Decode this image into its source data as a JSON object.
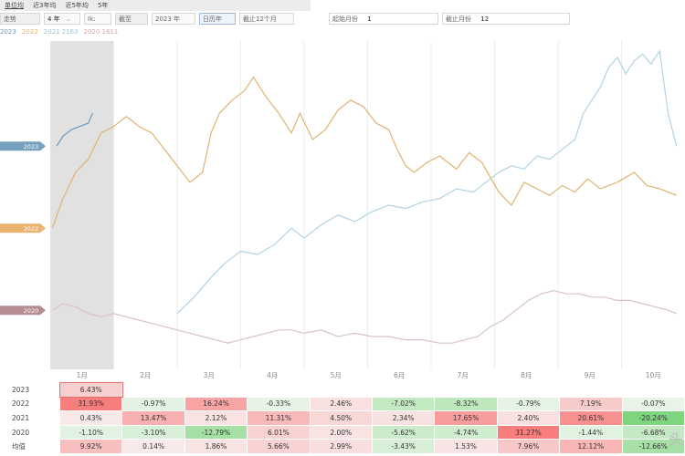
{
  "tabs": [
    "单位均",
    "近3年均",
    "近5年均",
    "5年"
  ],
  "controls": {
    "type": "走势",
    "period": "4 年",
    "unit": "Ik:",
    "mode": "截至",
    "year": "2023 年",
    "view": "日历年",
    "range": "截止12个月",
    "start_label": "起始月份",
    "start_value": "1",
    "end_label": "截止月份",
    "end_value": "12",
    "arrow": "⌄"
  },
  "legend": [
    {
      "label": "2023",
      "color": "#6e9bbd"
    },
    {
      "label": "2022",
      "color": "#f0b35a"
    },
    {
      "label": "2021 2163",
      "color": "#9fc4da"
    },
    {
      "label": "2020 1611",
      "color": "#e2a2a8"
    }
  ],
  "colors": {
    "y2023": "#6e9bbd",
    "y2022": "#e0b272",
    "y2021": "#b3d2e3",
    "y2020": "#d8c2c6",
    "shade": "#d9d9d9"
  },
  "chart_data": {
    "type": "line",
    "title": "",
    "xlabel": "",
    "ylabel": "",
    "categories": [
      "1月",
      "2月",
      "3月",
      "4月",
      "5月",
      "6月",
      "7月",
      "8月",
      "9月",
      "10月"
    ],
    "highlight_month": "1月",
    "ylim": [
      0,
      100
    ],
    "end_tags": [
      {
        "label": "2023",
        "y": 68
      },
      {
        "label": "2022",
        "y": 43
      },
      {
        "label": "2020",
        "y": 18
      }
    ],
    "series": [
      {
        "name": "2023",
        "points": [
          [
            0.15,
            68
          ],
          [
            0.3,
            71
          ],
          [
            0.5,
            73
          ],
          [
            0.7,
            74
          ],
          [
            0.9,
            75
          ],
          [
            1.0,
            78
          ]
        ]
      },
      {
        "name": "2022",
        "points": [
          [
            0.05,
            43
          ],
          [
            0.3,
            52
          ],
          [
            0.6,
            60
          ],
          [
            0.9,
            64
          ],
          [
            1.2,
            72
          ],
          [
            1.5,
            74
          ],
          [
            1.8,
            77
          ],
          [
            2.1,
            74
          ],
          [
            2.4,
            72
          ],
          [
            2.7,
            67
          ],
          [
            3.0,
            62
          ],
          [
            3.3,
            57
          ],
          [
            3.6,
            60
          ],
          [
            3.8,
            72
          ],
          [
            4.0,
            78
          ],
          [
            4.3,
            82
          ],
          [
            4.6,
            85
          ],
          [
            4.8,
            89
          ],
          [
            5.1,
            83
          ],
          [
            5.4,
            78
          ],
          [
            5.7,
            72
          ],
          [
            5.9,
            78
          ],
          [
            6.2,
            70
          ],
          [
            6.5,
            73
          ],
          [
            6.8,
            79
          ],
          [
            7.1,
            82
          ],
          [
            7.4,
            80
          ],
          [
            7.7,
            75
          ],
          [
            8.0,
            73
          ],
          [
            8.2,
            67
          ],
          [
            8.4,
            62
          ],
          [
            8.6,
            60
          ],
          [
            8.9,
            63
          ],
          [
            9.2,
            65
          ],
          [
            9.6,
            61
          ],
          [
            9.9,
            66
          ],
          [
            10.2,
            63
          ],
          [
            10.6,
            54
          ],
          [
            10.9,
            50
          ],
          [
            11.2,
            57
          ],
          [
            11.5,
            55
          ],
          [
            11.8,
            53
          ],
          [
            12.1,
            56
          ],
          [
            12.4,
            54
          ],
          [
            12.7,
            58
          ],
          [
            13.0,
            55
          ],
          [
            13.4,
            57
          ],
          [
            13.8,
            60
          ],
          [
            14.1,
            56
          ],
          [
            14.4,
            55
          ],
          [
            14.8,
            53
          ]
        ]
      },
      {
        "name": "2021",
        "points": [
          [
            3.0,
            17
          ],
          [
            3.4,
            22
          ],
          [
            3.8,
            28
          ],
          [
            4.1,
            32
          ],
          [
            4.5,
            36
          ],
          [
            4.9,
            35
          ],
          [
            5.3,
            38
          ],
          [
            5.7,
            43
          ],
          [
            6.0,
            40
          ],
          [
            6.4,
            44
          ],
          [
            6.8,
            47
          ],
          [
            7.2,
            45
          ],
          [
            7.6,
            48
          ],
          [
            8.0,
            50
          ],
          [
            8.4,
            49
          ],
          [
            8.8,
            51
          ],
          [
            9.2,
            52
          ],
          [
            9.6,
            55
          ],
          [
            10.0,
            54
          ],
          [
            10.3,
            57
          ],
          [
            10.6,
            60
          ],
          [
            10.9,
            62
          ],
          [
            11.2,
            61
          ],
          [
            11.5,
            65
          ],
          [
            11.8,
            64
          ],
          [
            12.1,
            67
          ],
          [
            12.4,
            70
          ],
          [
            12.6,
            78
          ],
          [
            12.8,
            82
          ],
          [
            13.0,
            86
          ],
          [
            13.2,
            92
          ],
          [
            13.4,
            95
          ],
          [
            13.6,
            90
          ],
          [
            13.8,
            94
          ],
          [
            14.0,
            96
          ],
          [
            14.2,
            93
          ],
          [
            14.4,
            97
          ],
          [
            14.6,
            78
          ],
          [
            14.8,
            68
          ]
        ]
      },
      {
        "name": "2020",
        "points": [
          [
            0.05,
            18
          ],
          [
            0.3,
            20
          ],
          [
            0.6,
            19
          ],
          [
            0.9,
            17
          ],
          [
            1.2,
            16
          ],
          [
            1.5,
            17
          ],
          [
            1.8,
            16
          ],
          [
            2.1,
            15
          ],
          [
            2.4,
            14
          ],
          [
            2.7,
            13
          ],
          [
            3.0,
            12
          ],
          [
            3.3,
            11
          ],
          [
            3.6,
            10
          ],
          [
            3.9,
            9
          ],
          [
            4.2,
            8
          ],
          [
            4.5,
            9
          ],
          [
            4.8,
            10
          ],
          [
            5.1,
            11
          ],
          [
            5.4,
            12
          ],
          [
            5.7,
            12
          ],
          [
            6.0,
            11
          ],
          [
            6.4,
            12
          ],
          [
            6.8,
            10
          ],
          [
            7.2,
            11
          ],
          [
            7.6,
            10
          ],
          [
            8.0,
            10
          ],
          [
            8.4,
            9
          ],
          [
            8.8,
            9
          ],
          [
            9.2,
            8
          ],
          [
            9.5,
            8
          ],
          [
            9.8,
            9
          ],
          [
            10.1,
            10
          ],
          [
            10.4,
            13
          ],
          [
            10.7,
            15
          ],
          [
            11.0,
            18
          ],
          [
            11.3,
            21
          ],
          [
            11.6,
            23
          ],
          [
            11.9,
            24
          ],
          [
            12.2,
            23
          ],
          [
            12.5,
            23
          ],
          [
            12.8,
            22
          ],
          [
            13.1,
            22
          ],
          [
            13.4,
            21
          ],
          [
            13.7,
            21
          ],
          [
            14.0,
            20
          ],
          [
            14.3,
            19
          ],
          [
            14.6,
            18
          ],
          [
            14.8,
            17
          ]
        ]
      }
    ]
  },
  "table": {
    "rows": [
      {
        "label": "2023",
        "cells": [
          "6.43%",
          "",
          "",
          "",
          "",
          "",
          "",
          "",
          "",
          ""
        ]
      },
      {
        "label": "2022",
        "cells": [
          "31.93%",
          "-0.97%",
          "16.24%",
          "-0.33%",
          "2.46%",
          "-7.02%",
          "-8.32%",
          "-0.79%",
          "7.19%",
          "-0.07%"
        ]
      },
      {
        "label": "2021",
        "cells": [
          "0.43%",
          "13.47%",
          "2.12%",
          "11.31%",
          "4.50%",
          "2.34%",
          "17.65%",
          "2.40%",
          "20.61%",
          "-20.24%"
        ]
      },
      {
        "label": "2020",
        "cells": [
          "-1.10%",
          "-3.10%",
          "-12.79%",
          "6.01%",
          "2.00%",
          "-5.62%",
          "-4.74%",
          "31.27%",
          "-1.44%",
          "-6.68%"
        ]
      },
      {
        "label": "均值",
        "cells": [
          "9.92%",
          "0.14%",
          "1.86%",
          "5.66%",
          "2.99%",
          "-3.43%",
          "1.53%",
          "7.96%",
          "12.12%",
          "-12.66%"
        ]
      }
    ]
  },
  "watermark": "头"
}
